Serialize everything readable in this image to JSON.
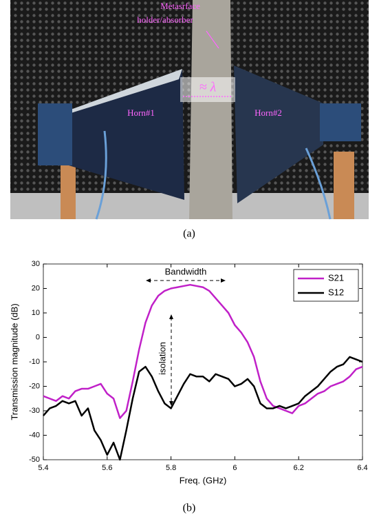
{
  "photo": {
    "absorber_label": [
      "Metasrface",
      "holder/absorber"
    ],
    "gap_label": "≈ λ",
    "horn1": "Horn#1",
    "horn2": "Horn#2"
  },
  "captions": [
    "(a)",
    "(b)"
  ],
  "chart_data": {
    "type": "line",
    "xlabel": "Freq. (GHz)",
    "ylabel": "Transmission magnitude (dB)",
    "annotations": [
      "Bandwidth",
      "isolation"
    ],
    "x": [
      5.4,
      5.42,
      5.44,
      5.46,
      5.48,
      5.5,
      5.52,
      5.54,
      5.56,
      5.58,
      5.6,
      5.62,
      5.64,
      5.66,
      5.68,
      5.7,
      5.72,
      5.74,
      5.76,
      5.78,
      5.8,
      5.82,
      5.84,
      5.86,
      5.88,
      5.9,
      5.92,
      5.94,
      5.96,
      5.98,
      6.0,
      6.02,
      6.04,
      6.06,
      6.08,
      6.1,
      6.12,
      6.14,
      6.16,
      6.18,
      6.2,
      6.22,
      6.24,
      6.26,
      6.28,
      6.3,
      6.32,
      6.34,
      6.36,
      6.38,
      6.4
    ],
    "series": [
      {
        "name": "S21",
        "color": "#c020c8",
        "values": [
          -24,
          -25,
          -26,
          -24,
          -25,
          -22,
          -21,
          -21,
          -20,
          -19,
          -23,
          -25,
          -33,
          -30,
          -18,
          -5,
          6,
          13,
          17,
          19,
          20,
          20.5,
          21,
          21.5,
          21,
          20.5,
          19,
          16,
          13,
          10,
          5,
          2,
          -2,
          -8,
          -18,
          -25,
          -28,
          -29,
          -30,
          -31,
          -28,
          -27,
          -25,
          -23,
          -22,
          -20,
          -19,
          -18,
          -16,
          -13,
          -12
        ]
      },
      {
        "name": "S12",
        "color": "#000000",
        "values": [
          -32,
          -29,
          -28,
          -26,
          -27,
          -26,
          -32,
          -29,
          -38,
          -42,
          -48,
          -43,
          -50,
          -38,
          -25,
          -14,
          -12,
          -16,
          -22,
          -27,
          -29,
          -24,
          -19,
          -15,
          -16,
          -16,
          -18,
          -15,
          -16,
          -17,
          -20,
          -19,
          -17,
          -20,
          -27,
          -29,
          -29,
          -28,
          -29,
          -28,
          -27,
          -24,
          -22,
          -20,
          -17,
          -14,
          -12,
          -11,
          -8,
          -9,
          -10
        ]
      }
    ],
    "xlim": [
      5.4,
      6.4
    ],
    "xticks": [
      5.4,
      5.6,
      5.8,
      6,
      6.2,
      6.4
    ],
    "ylim": [
      -50,
      30
    ],
    "yticks": [
      -50,
      -40,
      -30,
      -20,
      -10,
      0,
      10,
      20,
      30
    ],
    "grid": false,
    "legend": "upper right"
  }
}
